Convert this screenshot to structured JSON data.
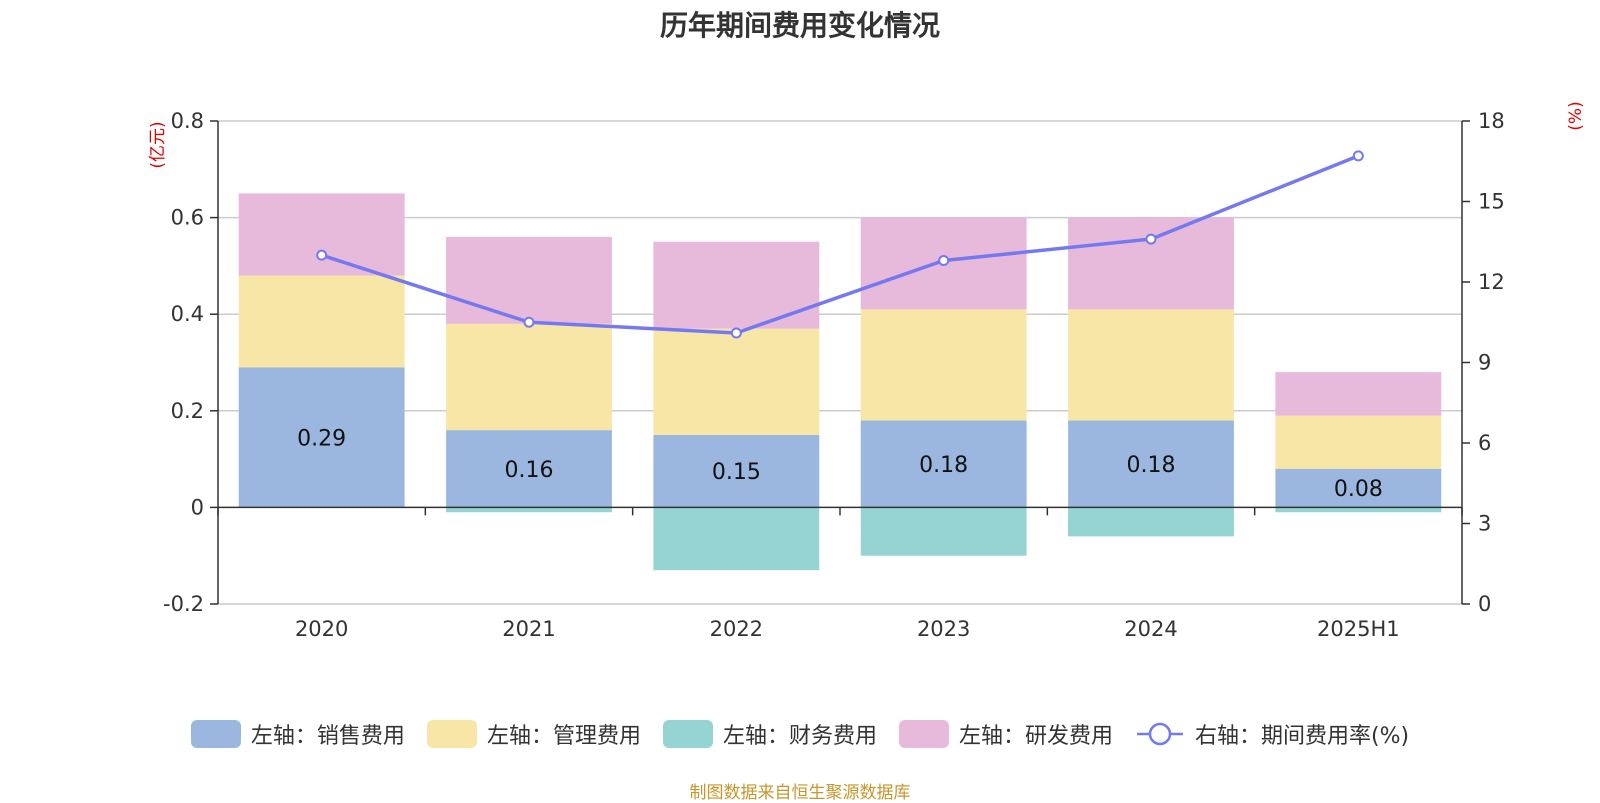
{
  "chart_data": {
    "type": "bar",
    "title": "历年期间费用变化情况",
    "categories": [
      "2020",
      "2021",
      "2022",
      "2023",
      "2024",
      "2025H1"
    ],
    "left_axis": {
      "unit": "(亿元)",
      "ylim": [
        -0.2,
        0.8
      ],
      "ticks": [
        "-0.2",
        "0",
        "0.2",
        "0.4",
        "0.6",
        "0.8"
      ]
    },
    "right_axis": {
      "unit": "(%)",
      "ylim": [
        0,
        18
      ],
      "ticks": [
        "0",
        "3",
        "6",
        "9",
        "12",
        "15",
        "18"
      ]
    },
    "series": [
      {
        "name": "左轴：销售费用",
        "type": "bar",
        "axis": "left",
        "color": "#9bb7e0",
        "values": [
          0.29,
          0.16,
          0.15,
          0.18,
          0.18,
          0.08
        ],
        "labels": [
          "0.29",
          "0.16",
          "0.15",
          "0.18",
          "0.18",
          "0.08"
        ]
      },
      {
        "name": "左轴：管理费用",
        "type": "bar",
        "axis": "left",
        "color": "#f8e6a6",
        "values": [
          0.19,
          0.22,
          0.22,
          0.23,
          0.23,
          0.11
        ]
      },
      {
        "name": "左轴：财务费用",
        "type": "bar",
        "axis": "left",
        "color": "#96d4d4",
        "values": [
          0.0,
          -0.01,
          -0.13,
          -0.1,
          -0.06,
          -0.01
        ]
      },
      {
        "name": "左轴：研发费用",
        "type": "bar",
        "axis": "left",
        "color": "#e7b9da",
        "values": [
          0.17,
          0.18,
          0.18,
          0.19,
          0.19,
          0.09
        ]
      },
      {
        "name": "右轴：期间费用率(%)",
        "type": "line",
        "axis": "right",
        "color": "#7579f0",
        "values": [
          13.0,
          10.5,
          10.1,
          12.8,
          13.6,
          16.7
        ]
      }
    ],
    "grid": true,
    "legend_position": "bottom"
  },
  "footer": {
    "source": "制图数据来自恒生聚源数据库"
  }
}
